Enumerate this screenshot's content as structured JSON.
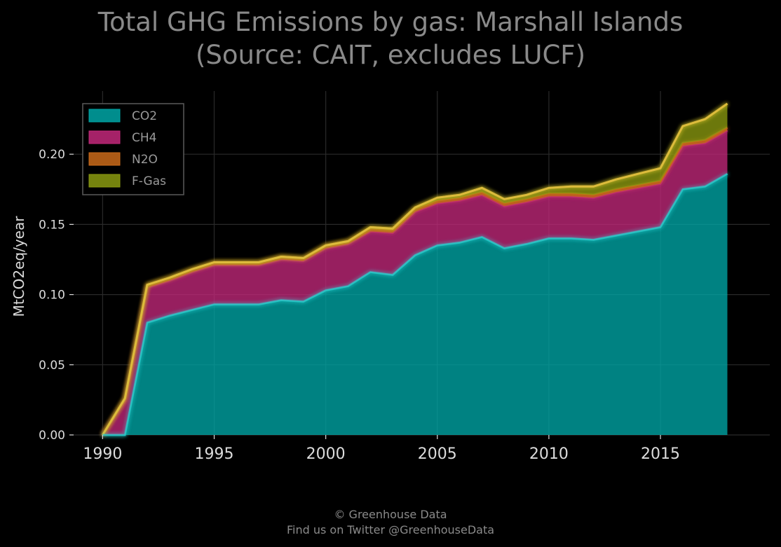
{
  "title": {
    "line1": "Total GHG Emissions by gas: Marshall Islands",
    "line2": "(Source: CAIT, excludes LUCF)"
  },
  "footer": {
    "line1": "© Greenhouse Data",
    "line2": "Find us on Twitter @GreenhouseData"
  },
  "chart_data": {
    "type": "area",
    "stacked": true,
    "title": "Total GHG Emissions by gas: Marshall Islands (Source: CAIT, excludes LUCF)",
    "xlabel": "",
    "ylabel": "MtCO2eq/year",
    "xlim": [
      1988.7,
      2019.9
    ],
    "ylim": [
      0,
      0.245
    ],
    "grid": true,
    "legend_position": "top-left",
    "x_ticks": [
      1990,
      1995,
      2000,
      2005,
      2010,
      2015
    ],
    "y_ticks": [
      0.0,
      0.05,
      0.1,
      0.15,
      0.2
    ],
    "y_tick_labels": [
      "0.00",
      "0.05",
      "0.10",
      "0.15",
      "0.20"
    ],
    "x": [
      1990,
      1991,
      1992,
      1993,
      1994,
      1995,
      1996,
      1997,
      1998,
      1999,
      2000,
      2001,
      2002,
      2003,
      2004,
      2005,
      2006,
      2007,
      2008,
      2009,
      2010,
      2011,
      2012,
      2013,
      2014,
      2015,
      2016,
      2017,
      2018
    ],
    "series": [
      {
        "name": "CO2",
        "color": "#00a6a6",
        "values": [
          0,
          0,
          0.08,
          0.085,
          0.089,
          0.093,
          0.093,
          0.093,
          0.096,
          0.095,
          0.103,
          0.106,
          0.116,
          0.114,
          0.128,
          0.135,
          0.137,
          0.141,
          0.133,
          0.136,
          0.14,
          0.14,
          0.139,
          0.142,
          0.145,
          0.148,
          0.175,
          0.177,
          0.186
        ]
      },
      {
        "name": "CH4",
        "color": "#c2287a",
        "values": [
          0,
          0.024,
          0.025,
          0.025,
          0.027,
          0.028,
          0.028,
          0.028,
          0.029,
          0.029,
          0.03,
          0.03,
          0.029,
          0.03,
          0.031,
          0.03,
          0.03,
          0.03,
          0.03,
          0.03,
          0.03,
          0.03,
          0.03,
          0.031,
          0.031,
          0.031,
          0.031,
          0.031,
          0.031
        ]
      },
      {
        "name": "N2O",
        "color": "#c96a1a",
        "values": [
          0,
          0.002,
          0.002,
          0.002,
          0.002,
          0.002,
          0.002,
          0.002,
          0.002,
          0.002,
          0.002,
          0.002,
          0.002,
          0.002,
          0.002,
          0.002,
          0.002,
          0.002,
          0.002,
          0.002,
          0.002,
          0.002,
          0.002,
          0.002,
          0.002,
          0.002,
          0.002,
          0.002,
          0.002
        ]
      },
      {
        "name": "F-Gas",
        "color": "#8a9a10",
        "values": [
          0,
          0,
          0,
          0,
          0,
          0,
          0,
          0,
          0,
          0,
          0,
          0,
          0.001,
          0.001,
          0.001,
          0.002,
          0.002,
          0.003,
          0.003,
          0.003,
          0.004,
          0.005,
          0.006,
          0.007,
          0.008,
          0.009,
          0.012,
          0.015,
          0.017
        ]
      }
    ]
  },
  "colors": {
    "background": "#000000",
    "text": "#8a8a8a",
    "tick_text": "#dcdcdc",
    "grid": "#2a2a2a",
    "top_outline": "#e6c040"
  }
}
